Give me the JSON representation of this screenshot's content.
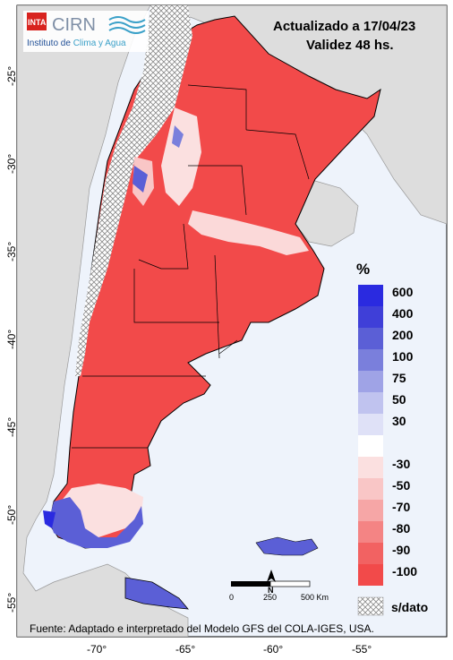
{
  "header": {
    "updated": "Actualizado a 17/04/23",
    "validity": "Validez 48 hs."
  },
  "logo": {
    "brand_inta": "INTA",
    "brand_cirn": "CIRN",
    "subtitle_a": "Instituto de ",
    "subtitle_b": "Clima y Agua"
  },
  "legend": {
    "unit": "%",
    "entries": [
      {
        "label": "600",
        "color": "#2a2ae0"
      },
      {
        "label": "400",
        "color": "#3f3fd8"
      },
      {
        "label": "200",
        "color": "#5b5fd6"
      },
      {
        "label": "100",
        "color": "#7a7fdc"
      },
      {
        "label": "75",
        "color": "#9fa3e6"
      },
      {
        "label": "50",
        "color": "#c0c3ef"
      },
      {
        "label": "30",
        "color": "#dfe1f7"
      },
      {
        "label": "",
        "color": "#ffffff"
      },
      {
        "label": "-30",
        "color": "#fbe0e0"
      },
      {
        "label": "-50",
        "color": "#f9c6c6"
      },
      {
        "label": "-70",
        "color": "#f6a6a6"
      },
      {
        "label": "-80",
        "color": "#f48484"
      },
      {
        "label": "-90",
        "color": "#f26262"
      },
      {
        "label": "-100",
        "color": "#f24a4a"
      }
    ],
    "nodata_label": "s/dato"
  },
  "axes": {
    "lat_ticks": [
      "-25°",
      "-30°",
      "-35°",
      "-40°",
      "-45°",
      "-50°",
      "-55°"
    ],
    "lon_ticks": [
      "-70°",
      "-65°",
      "-60°",
      "-55°"
    ]
  },
  "scale": {
    "labels": [
      "0",
      "250",
      "500 Km"
    ],
    "north": "N"
  },
  "source": "Fuente: Adaptado e interpretado del Modelo GFS del COLA-IGES, USA.",
  "colors": {
    "sea": "#eef3fb",
    "neighbor_land": "#dddddd",
    "argentina_fill": "#f24a4a",
    "border": "#000000"
  }
}
